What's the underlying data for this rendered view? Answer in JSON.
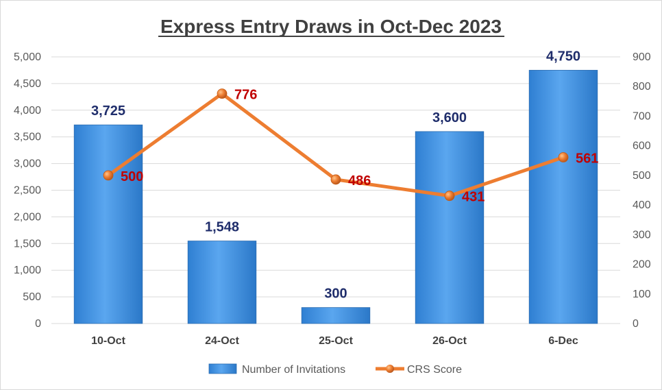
{
  "chart_data": {
    "type": "bar",
    "title": "Express Entry Draws in Oct-Dec 2023",
    "categories": [
      "10-Oct",
      "24-Oct",
      "25-Oct",
      "26-Oct",
      "6-Dec"
    ],
    "series": [
      {
        "name": "Number of Invitations",
        "type": "bar",
        "axis": "left",
        "values": [
          3725,
          1548,
          300,
          3600,
          4750
        ],
        "labels": [
          "3,725",
          "1,548",
          "300",
          "3,600",
          "4,750"
        ],
        "color": "#3a8fde"
      },
      {
        "name": "CRS Score",
        "type": "line",
        "axis": "right",
        "values": [
          500,
          776,
          486,
          431,
          561
        ],
        "labels": [
          "500",
          "776",
          "486",
          "431",
          "561"
        ],
        "color": "#ed7d31"
      }
    ],
    "y_left": {
      "ylim": [
        0,
        5000
      ],
      "ticks": [
        0,
        500,
        1000,
        1500,
        2000,
        2500,
        3000,
        3500,
        4000,
        4500,
        5000
      ],
      "tick_labels": [
        "0",
        "500",
        "1,000",
        "1,500",
        "2,000",
        "2,500",
        "3,000",
        "3,500",
        "4,000",
        "4,500",
        "5,000"
      ]
    },
    "y_right": {
      "ylim": [
        0,
        900
      ],
      "ticks": [
        0,
        100,
        200,
        300,
        400,
        500,
        600,
        700,
        800,
        900
      ],
      "tick_labels": [
        "0",
        "100",
        "200",
        "300",
        "400",
        "500",
        "600",
        "700",
        "800",
        "900"
      ]
    },
    "grid": true,
    "legend_position": "bottom"
  }
}
